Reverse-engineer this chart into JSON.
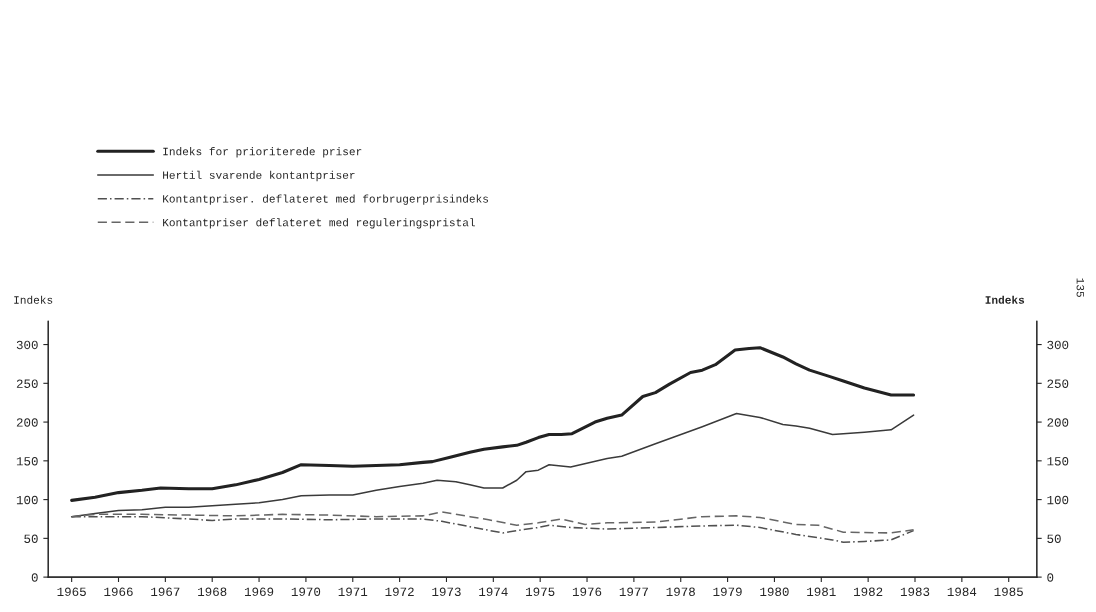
{
  "chart_data": {
    "type": "line",
    "ylabel": "Indeks",
    "y2label": "Indeks",
    "annotations": [
      "135"
    ],
    "xlim": [
      1964.5,
      1985.6
    ],
    "xticks": [
      1965,
      1966,
      1967,
      1968,
      1969,
      1970,
      1971,
      1972,
      1973,
      1974,
      1975,
      1976,
      1977,
      1978,
      1979,
      1980,
      1981,
      1982,
      1983,
      1984,
      1985
    ],
    "ylim": [
      0,
      330
    ],
    "yticks": [
      0,
      50,
      100,
      150,
      200,
      250,
      300
    ],
    "y2lim": [
      0,
      330
    ],
    "y2ticks": [
      0,
      50,
      100,
      150,
      200,
      250,
      300
    ],
    "legend": "top left",
    "grid": false,
    "series": [
      {
        "name": "Indeks for prioriterede priser",
        "color": "#222222",
        "line_style": "solid",
        "x": [
          1965,
          1965.5,
          1966,
          1966.5,
          1966.9,
          1967.5,
          1968,
          1968.5,
          1969,
          1969.5,
          1969.9,
          1970.5,
          1971,
          1971.5,
          1972,
          1972.5,
          1972.7,
          1973.1,
          1973.5,
          1973.8,
          1974.2,
          1974.5,
          1974.7,
          1974.96,
          1975.19,
          1975.45,
          1975.68,
          1976.17,
          1976.43,
          1976.74,
          1977.19,
          1977.46,
          1977.76,
          1978.21,
          1978.46,
          1978.74,
          1979.16,
          1979.46,
          1979.69,
          1980.18,
          1980.46,
          1980.75,
          1981.17,
          1981.47,
          1981.92,
          1982.49,
          1982.97
        ],
        "values": [
          99,
          103,
          109,
          112,
          115,
          114,
          114,
          119,
          126,
          135,
          145,
          144,
          143,
          144,
          145,
          148,
          149,
          155,
          161,
          165,
          168,
          170,
          174,
          180,
          184,
          184,
          185,
          200,
          205,
          209,
          233,
          238,
          249,
          264,
          267,
          274,
          293,
          295,
          296,
          284,
          275,
          267,
          259,
          253,
          244,
          235,
          235
        ]
      },
      {
        "name": "Hertil svarende kontantpriser",
        "color": "#3a3a3a",
        "line_style": "solid",
        "x": [
          1965,
          1965.5,
          1966,
          1966.5,
          1967,
          1967.5,
          1968,
          1968.5,
          1969,
          1969.5,
          1969.9,
          1970.5,
          1971,
          1971.5,
          1972,
          1972.5,
          1972.8,
          1973.2,
          1973.5,
          1973.8,
          1974.2,
          1974.5,
          1974.7,
          1974.96,
          1975.19,
          1975.65,
          1976.43,
          1976.74,
          1977.46,
          1978.46,
          1979.19,
          1979.69,
          1980.18,
          1980.46,
          1980.75,
          1981.24,
          1981.47,
          1981.92,
          1982.49,
          1982.97
        ],
        "values": [
          78,
          82,
          86,
          87,
          90,
          90,
          92,
          94,
          96,
          100,
          105,
          106,
          106,
          112,
          117,
          121,
          125,
          123,
          119,
          115,
          115,
          125,
          136,
          138,
          145,
          142,
          153,
          156,
          172,
          194,
          211,
          206,
          197,
          195,
          192,
          184,
          185,
          187,
          190,
          209
        ]
      },
      {
        "name": "Kontantpriser. deflateret med forbrugerprisindeks",
        "color": "#505050",
        "line_style": "dashdot",
        "x": [
          1965,
          1965.5,
          1966.5,
          1967.5,
          1968,
          1968.5,
          1969.5,
          1970.5,
          1971.5,
          1972.5,
          1972.9,
          1973.5,
          1974.2,
          1974.5,
          1974.96,
          1975.19,
          1975.65,
          1976.43,
          1977.46,
          1978.46,
          1979.19,
          1979.69,
          1980.46,
          1981.24,
          1981.47,
          1981.92,
          1982.49,
          1982.97
        ],
        "values": [
          78,
          78,
          78,
          75,
          73,
          75,
          75,
          74,
          75,
          75,
          72,
          65,
          57,
          60,
          64,
          67,
          64,
          62,
          64,
          66,
          67,
          64,
          55,
          48,
          45,
          46,
          48,
          60
        ]
      },
      {
        "name": "Kontantpriser deflateret med reguleringspristal",
        "color": "#666666",
        "line_style": "dashed",
        "x": [
          1965,
          1965.5,
          1966.5,
          1967.5,
          1968.5,
          1969.5,
          1970.5,
          1971.5,
          1972.5,
          1972.9,
          1973.5,
          1973.9,
          1974.5,
          1974.96,
          1975.45,
          1975.96,
          1976.43,
          1977.46,
          1978.46,
          1979.19,
          1979.69,
          1980.46,
          1980.94,
          1981.47,
          1982.49,
          1982.97
        ],
        "values": [
          78,
          81,
          81,
          80,
          79,
          81,
          80,
          78,
          79,
          84,
          78,
          74,
          67,
          70,
          75,
          68,
          70,
          71,
          78,
          79,
          77,
          68,
          67,
          58,
          57,
          61
        ]
      }
    ]
  }
}
